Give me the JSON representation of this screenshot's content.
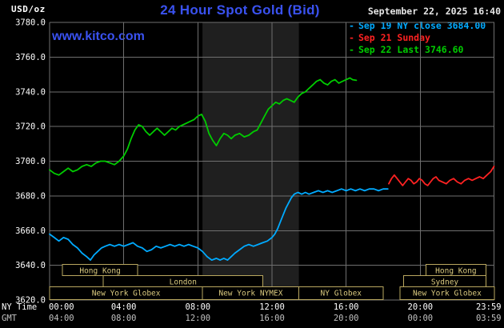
{
  "header": {
    "units": "USD/oz",
    "title": "24 Hour Spot Gold (Bid)",
    "datetime": "September 22, 2025 16:40",
    "watermark": "www.kitco.com"
  },
  "legend": {
    "items": [
      {
        "id": "sep19",
        "label": "Sep 19 NY close 3684.00",
        "color": "#00aaff"
      },
      {
        "id": "sep21",
        "label": "Sep 21 Sunday",
        "color": "#ff2222"
      },
      {
        "id": "sep22",
        "label": "Sep 22 Last 3746.60",
        "color": "#00cc00"
      }
    ]
  },
  "colors": {
    "background": "#000000",
    "kitco_blue": "#3a52f0",
    "datetime_text": "#e6e6e6",
    "grid": "#6f6f6f",
    "axis_text": "#ffffff",
    "gmt_text": "#c0c0c0",
    "band": "rgba(255,255,255,0.12)",
    "session_border": "#b9a75f",
    "session_text": "#d9c97f",
    "session_fill": "#000000"
  },
  "chart_data": {
    "type": "line",
    "title": "24 Hour Spot Gold (Bid)",
    "ylabel": "USD/oz",
    "grid": true,
    "legend_position": "top-right",
    "x_axis": {
      "range_hours": [
        0,
        24
      ],
      "ticks_hours": [
        0,
        4,
        8,
        12,
        16,
        20,
        23.983
      ],
      "row_label_ny": "NY Time",
      "row_label_gmt": "GMT",
      "ny_labels": [
        "00:00",
        "04:00",
        "08:00",
        "12:00",
        "16:00",
        "20:00",
        "23:59"
      ],
      "gmt_labels": [
        "04:00",
        "08:00",
        "12:00",
        "16:00",
        "20:00",
        "00:00",
        "03:59"
      ]
    },
    "y_axis": {
      "range": [
        3620,
        3780
      ],
      "tick_values": [
        3780,
        3760,
        3740,
        3720,
        3700,
        3680,
        3660,
        3640,
        3620
      ],
      "tick_labels": [
        "3780.0",
        "3760.0",
        "3740.0",
        "3720.0",
        "3700.0",
        "3680.0",
        "3660.0",
        "3640.0",
        "3620.0"
      ]
    },
    "band_hours": [
      8.25,
      13.45
    ],
    "series": [
      {
        "id": "sep19",
        "name": "Sep 19 NY close 3684.00",
        "color": "#00aaff",
        "points": [
          [
            0,
            3658
          ],
          [
            0.25,
            3656
          ],
          [
            0.5,
            3654
          ],
          [
            0.75,
            3656
          ],
          [
            1,
            3655
          ],
          [
            1.25,
            3652
          ],
          [
            1.5,
            3650
          ],
          [
            1.75,
            3647
          ],
          [
            2,
            3645
          ],
          [
            2.2,
            3643
          ],
          [
            2.4,
            3646
          ],
          [
            2.6,
            3648
          ],
          [
            2.8,
            3650
          ],
          [
            3,
            3651
          ],
          [
            3.25,
            3652
          ],
          [
            3.5,
            3651
          ],
          [
            3.75,
            3652
          ],
          [
            4,
            3651
          ],
          [
            4.25,
            3652
          ],
          [
            4.5,
            3653
          ],
          [
            4.75,
            3651
          ],
          [
            5,
            3650
          ],
          [
            5.25,
            3648
          ],
          [
            5.5,
            3649
          ],
          [
            5.75,
            3651
          ],
          [
            6,
            3650
          ],
          [
            6.25,
            3651
          ],
          [
            6.5,
            3652
          ],
          [
            6.75,
            3651
          ],
          [
            7,
            3652
          ],
          [
            7.25,
            3651
          ],
          [
            7.5,
            3652
          ],
          [
            7.75,
            3651
          ],
          [
            8,
            3650
          ],
          [
            8.25,
            3648
          ],
          [
            8.5,
            3645
          ],
          [
            8.75,
            3643
          ],
          [
            9,
            3644
          ],
          [
            9.2,
            3643
          ],
          [
            9.4,
            3644
          ],
          [
            9.6,
            3643
          ],
          [
            9.8,
            3645
          ],
          [
            10,
            3647
          ],
          [
            10.25,
            3649
          ],
          [
            10.5,
            3651
          ],
          [
            10.75,
            3652
          ],
          [
            11,
            3651
          ],
          [
            11.25,
            3652
          ],
          [
            11.5,
            3653
          ],
          [
            11.75,
            3654
          ],
          [
            12,
            3656
          ],
          [
            12.15,
            3658
          ],
          [
            12.3,
            3661
          ],
          [
            12.45,
            3665
          ],
          [
            12.6,
            3669
          ],
          [
            12.75,
            3673
          ],
          [
            12.9,
            3676
          ],
          [
            13.05,
            3679
          ],
          [
            13.2,
            3681
          ],
          [
            13.4,
            3682
          ],
          [
            13.6,
            3681
          ],
          [
            13.8,
            3682
          ],
          [
            14,
            3681
          ],
          [
            14.25,
            3682
          ],
          [
            14.5,
            3683
          ],
          [
            14.75,
            3682
          ],
          [
            15,
            3683
          ],
          [
            15.25,
            3682
          ],
          [
            15.5,
            3683
          ],
          [
            15.75,
            3684
          ],
          [
            16,
            3683
          ],
          [
            16.25,
            3684
          ],
          [
            16.5,
            3683
          ],
          [
            16.75,
            3684
          ],
          [
            17,
            3683
          ],
          [
            17.25,
            3684
          ],
          [
            17.5,
            3684
          ],
          [
            17.75,
            3683
          ],
          [
            18,
            3684
          ],
          [
            18.25,
            3684
          ]
        ]
      },
      {
        "id": "sep21",
        "name": "Sep 21 Sunday",
        "color": "#ff2222",
        "points": [
          [
            18.3,
            3687
          ],
          [
            18.45,
            3690
          ],
          [
            18.6,
            3692
          ],
          [
            18.75,
            3690
          ],
          [
            18.9,
            3688
          ],
          [
            19.05,
            3686
          ],
          [
            19.2,
            3688
          ],
          [
            19.35,
            3690
          ],
          [
            19.5,
            3689
          ],
          [
            19.65,
            3687
          ],
          [
            19.8,
            3688
          ],
          [
            19.95,
            3690
          ],
          [
            20.1,
            3689
          ],
          [
            20.25,
            3687
          ],
          [
            20.4,
            3686
          ],
          [
            20.55,
            3688
          ],
          [
            20.7,
            3690
          ],
          [
            20.85,
            3691
          ],
          [
            21,
            3689
          ],
          [
            21.2,
            3688
          ],
          [
            21.4,
            3687
          ],
          [
            21.6,
            3689
          ],
          [
            21.8,
            3690
          ],
          [
            22,
            3688
          ],
          [
            22.2,
            3687
          ],
          [
            22.4,
            3689
          ],
          [
            22.6,
            3690
          ],
          [
            22.8,
            3689
          ],
          [
            23,
            3690
          ],
          [
            23.2,
            3691
          ],
          [
            23.4,
            3690
          ],
          [
            23.6,
            3692
          ],
          [
            23.8,
            3694
          ],
          [
            23.98,
            3697
          ]
        ]
      },
      {
        "id": "sep22",
        "name": "Sep 22 Last 3746.60",
        "color": "#00cc00",
        "points": [
          [
            0,
            3695
          ],
          [
            0.25,
            3693
          ],
          [
            0.5,
            3692
          ],
          [
            0.75,
            3694
          ],
          [
            1,
            3696
          ],
          [
            1.25,
            3694
          ],
          [
            1.5,
            3695
          ],
          [
            1.75,
            3697
          ],
          [
            2,
            3698
          ],
          [
            2.25,
            3697
          ],
          [
            2.5,
            3699
          ],
          [
            2.75,
            3700
          ],
          [
            3,
            3700
          ],
          [
            3.25,
            3699
          ],
          [
            3.5,
            3698
          ],
          [
            3.75,
            3700
          ],
          [
            4,
            3703
          ],
          [
            4.2,
            3707
          ],
          [
            4.4,
            3713
          ],
          [
            4.6,
            3718
          ],
          [
            4.8,
            3721
          ],
          [
            5,
            3720
          ],
          [
            5.2,
            3717
          ],
          [
            5.4,
            3715
          ],
          [
            5.6,
            3717
          ],
          [
            5.8,
            3719
          ],
          [
            6,
            3717
          ],
          [
            6.2,
            3715
          ],
          [
            6.4,
            3717
          ],
          [
            6.6,
            3719
          ],
          [
            6.8,
            3718
          ],
          [
            7,
            3720
          ],
          [
            7.2,
            3721
          ],
          [
            7.4,
            3722
          ],
          [
            7.6,
            3723
          ],
          [
            7.8,
            3724
          ],
          [
            8,
            3726
          ],
          [
            8.2,
            3727
          ],
          [
            8.4,
            3723
          ],
          [
            8.6,
            3716
          ],
          [
            8.8,
            3712
          ],
          [
            9,
            3709
          ],
          [
            9.2,
            3713
          ],
          [
            9.4,
            3716
          ],
          [
            9.6,
            3715
          ],
          [
            9.8,
            3713
          ],
          [
            10,
            3715
          ],
          [
            10.25,
            3716
          ],
          [
            10.5,
            3714
          ],
          [
            10.75,
            3715
          ],
          [
            11,
            3717
          ],
          [
            11.2,
            3718
          ],
          [
            11.4,
            3722
          ],
          [
            11.6,
            3726
          ],
          [
            11.8,
            3730
          ],
          [
            12,
            3732
          ],
          [
            12.2,
            3734
          ],
          [
            12.4,
            3733
          ],
          [
            12.6,
            3735
          ],
          [
            12.8,
            3736
          ],
          [
            13,
            3735
          ],
          [
            13.2,
            3734
          ],
          [
            13.4,
            3737
          ],
          [
            13.6,
            3739
          ],
          [
            13.8,
            3740
          ],
          [
            14,
            3742
          ],
          [
            14.2,
            3744
          ],
          [
            14.4,
            3746
          ],
          [
            14.6,
            3747
          ],
          [
            14.8,
            3745
          ],
          [
            15,
            3744
          ],
          [
            15.2,
            3746
          ],
          [
            15.4,
            3747
          ],
          [
            15.6,
            3745
          ],
          [
            15.8,
            3746
          ],
          [
            16,
            3747
          ],
          [
            16.2,
            3748
          ],
          [
            16.35,
            3747
          ],
          [
            16.55,
            3746.6
          ]
        ]
      }
    ],
    "sessions": [
      {
        "label": "Hong Kong",
        "row": 0,
        "from": 0.7,
        "to": 4.75
      },
      {
        "label": "Hong Kong",
        "row": 0,
        "from": 20.3,
        "to": 23.55
      },
      {
        "label": "London",
        "row": 1,
        "from": 2.9,
        "to": 11.5
      },
      {
        "label": "Sydney",
        "row": 1,
        "from": 19.1,
        "to": 23.55
      },
      {
        "label": "New York Globex",
        "row": 2,
        "from": 0,
        "to": 8.25
      },
      {
        "label": "New York NYMEX",
        "row": 2,
        "from": 8.25,
        "to": 13.45
      },
      {
        "label": "NY Globex",
        "row": 2,
        "from": 13.45,
        "to": 18.0
      },
      {
        "label": "New York Globex",
        "row": 2,
        "from": 18.9,
        "to": 24.0
      }
    ]
  }
}
